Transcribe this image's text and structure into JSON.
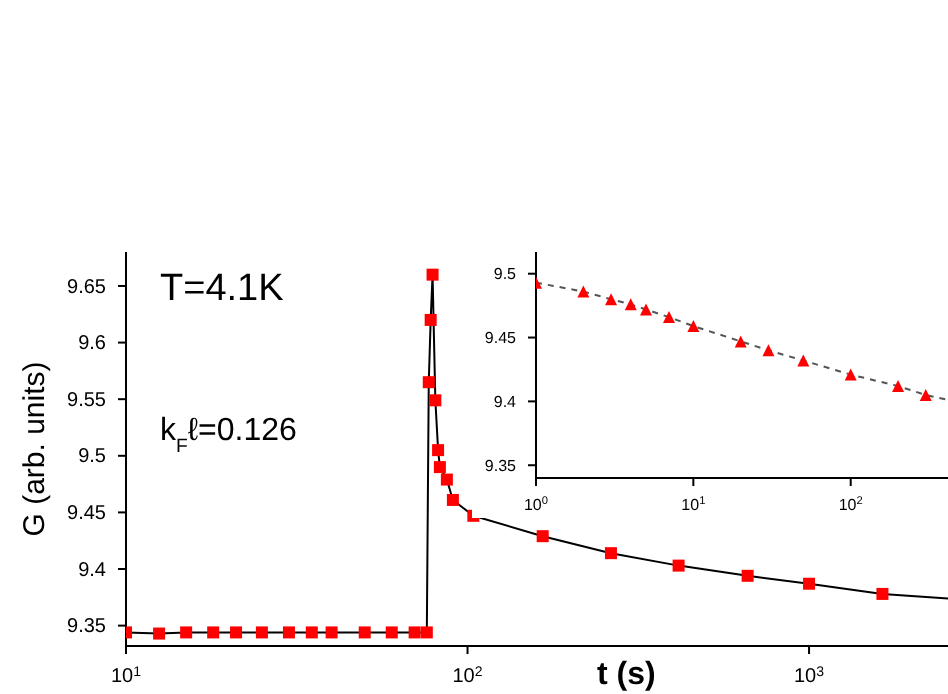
{
  "chart_data": [
    {
      "type": "line",
      "xlabel": "t (s)",
      "ylabel": "G (arb. units)",
      "annotations": [
        "T=4.1K",
        "k$_{F}$ℓ=0.126"
      ],
      "log": "x",
      "xlim": [
        10,
        3000
      ],
      "ylim": [
        9.332,
        9.68
      ],
      "xticks": [
        {
          "value": 10,
          "label": "10$^{1}$"
        },
        {
          "value": 100,
          "label": "10$^{2}$"
        },
        {
          "value": 1000,
          "label": "10$^{3}$"
        }
      ],
      "yticks": [
        9.35,
        9.4,
        9.45,
        9.5,
        9.55,
        9.6,
        9.65
      ],
      "marker": "square",
      "line_style": "solid",
      "series": [
        {
          "color": "#ff0000",
          "x": [
            10,
            12.5,
            15,
            18,
            21,
            25,
            30,
            35,
            40,
            50,
            60,
            70,
            76,
            77,
            78,
            79,
            80.5,
            82,
            83,
            87,
            90.6,
            104,
            166,
            263,
            415,
            661,
            1000,
            1640,
            2850
          ],
          "values": [
            9.344,
            9.343,
            9.344,
            9.344,
            9.344,
            9.344,
            9.344,
            9.344,
            9.344,
            9.344,
            9.344,
            9.344,
            9.344,
            9.565,
            9.62,
            9.66,
            9.549,
            9.505,
            9.49,
            9.479,
            9.461,
            9.447,
            9.429,
            9.414,
            9.403,
            9.394,
            9.387,
            9.378,
            9.373
          ]
        }
      ]
    },
    {
      "type": "line",
      "log": "x",
      "xlim": [
        1,
        590
      ],
      "ylim": [
        9.34,
        9.517
      ],
      "xticks": [
        {
          "value": 1,
          "label": "10$^{0}$"
        },
        {
          "value": 10,
          "label": "10$^{1}$"
        },
        {
          "value": 100,
          "label": "10$^{2}$"
        }
      ],
      "yticks": [
        9.35,
        9.4,
        9.45,
        9.5
      ],
      "marker": "triangle",
      "line_style": "dashed",
      "series": [
        {
          "color": "#ff0000",
          "x": [
            1,
            2,
            3,
            4,
            5,
            7,
            10,
            20,
            30,
            50,
            100,
            200,
            300,
            590
          ],
          "values": [
            9.493,
            9.486,
            9.48,
            9.476,
            9.472,
            9.466,
            9.459,
            9.447,
            9.44,
            9.432,
            9.421,
            9.412,
            9.405,
            9.397
          ]
        }
      ]
    }
  ]
}
